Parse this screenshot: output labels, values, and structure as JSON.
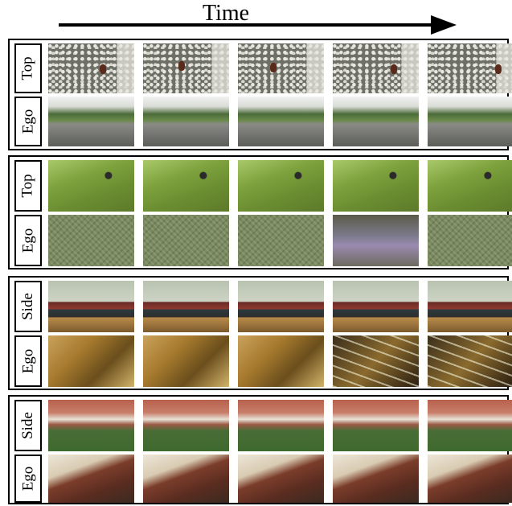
{
  "header": {
    "time_label": "Time"
  },
  "groups": [
    {
      "rows": [
        {
          "label": "Top"
        },
        {
          "label": "Ego"
        }
      ]
    },
    {
      "rows": [
        {
          "label": "Top"
        },
        {
          "label": "Ego"
        }
      ]
    },
    {
      "rows": [
        {
          "label": "Side"
        },
        {
          "label": "Ego"
        }
      ]
    },
    {
      "rows": [
        {
          "label": "Side"
        },
        {
          "label": "Ego"
        }
      ]
    }
  ]
}
